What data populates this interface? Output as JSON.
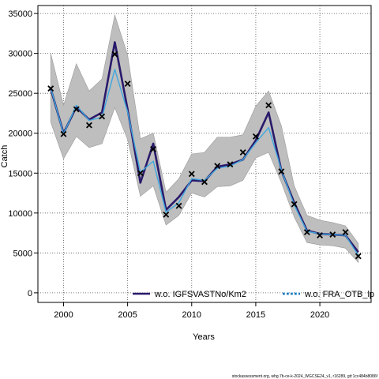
{
  "chart_data": {
    "type": "line",
    "xlabel": "Years",
    "ylabel": "Catch",
    "xlim": [
      1998,
      2024
    ],
    "ylim": [
      -1200,
      36000
    ],
    "xticks": [
      2000,
      2005,
      2010,
      2015,
      2020
    ],
    "yticks": [
      0,
      5000,
      10000,
      15000,
      20000,
      25000,
      30000,
      35000
    ],
    "grid": true,
    "legend_position": "bottom",
    "years": [
      1999,
      2000,
      2001,
      2002,
      2003,
      2004,
      2005,
      2006,
      2007,
      2008,
      2009,
      2010,
      2011,
      2012,
      2013,
      2014,
      2015,
      2016,
      2017,
      2018,
      2019,
      2020,
      2021,
      2022,
      2023
    ],
    "observed": {
      "marker": "x",
      "values": [
        25600,
        19900,
        23000,
        21000,
        22100,
        29900,
        26200,
        15000,
        18000,
        9800,
        10900,
        14900,
        13900,
        15900,
        16100,
        17600,
        19600,
        23500,
        15200,
        11100,
        7600,
        7200,
        7300,
        7600,
        4600
      ]
    },
    "confidence_band": {
      "upper": [
        30000,
        23500,
        28700,
        25300,
        26800,
        34800,
        29800,
        19300,
        20000,
        12600,
        14300,
        17400,
        17600,
        19500,
        19500,
        19800,
        23400,
        25300,
        20900,
        13400,
        9700,
        9100,
        8800,
        8400,
        6200
      ],
      "lower": [
        21400,
        16800,
        19600,
        18200,
        18700,
        23200,
        19200,
        12100,
        13400,
        8500,
        9700,
        12500,
        12000,
        13300,
        13400,
        14100,
        16900,
        17600,
        13800,
        9500,
        6300,
        6000,
        5900,
        5600,
        3800
      ]
    },
    "series": [
      {
        "name": "w.o. IGFSVASTNo/Km2",
        "color": "#2a1a6b",
        "values": [
          25600,
          20000,
          23300,
          21700,
          22600,
          31400,
          23000,
          13800,
          18700,
          10400,
          12000,
          14100,
          14000,
          15800,
          16100,
          16700,
          19100,
          22600,
          15300,
          11300,
          7800,
          7400,
          7300,
          7200,
          5100
        ]
      },
      {
        "name": "w.o. FRA_OTB_lp",
        "color": "#3fa7df",
        "values": [
          25700,
          19900,
          23500,
          21600,
          22000,
          28000,
          22700,
          15100,
          16500,
          10100,
          11300,
          14300,
          14100,
          15600,
          15900,
          16700,
          18800,
          20700,
          15400,
          11000,
          7700,
          7400,
          7300,
          7200,
          4700
        ]
      }
    ],
    "colors": {
      "band": "#bebebe",
      "band_edge": "#999999",
      "grid": "#555555",
      "axis": "#000000",
      "marker": "#000000"
    }
  },
  "footnote": "stockassessment.org, whg.7b-ce-k-2024_WGCSE24_v1, r16289, git:1cc484b8086f"
}
